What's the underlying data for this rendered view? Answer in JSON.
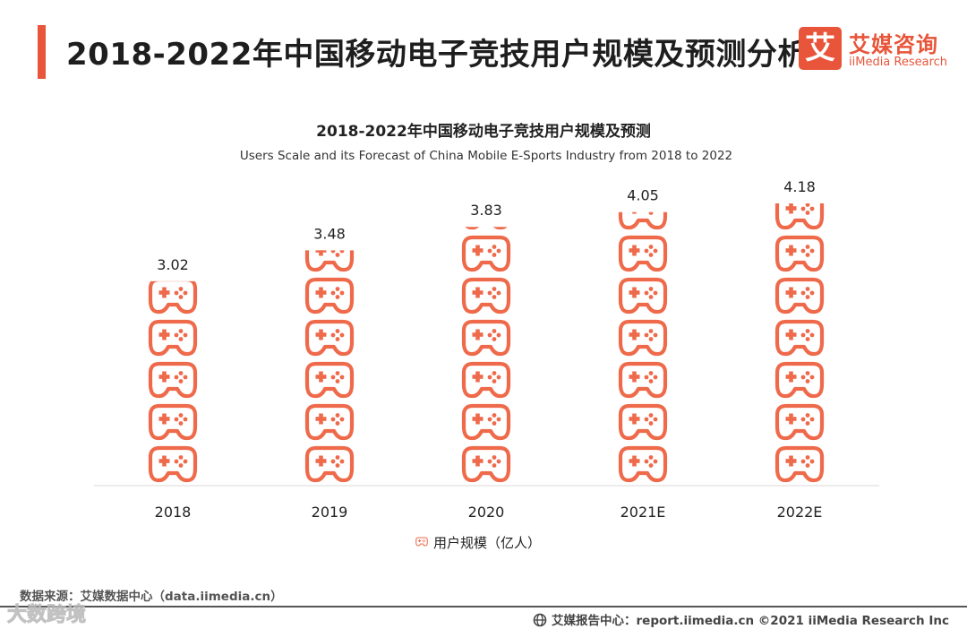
{
  "header": {
    "title": "2018-2022年中国移动电子竞技用户规模及预测分析",
    "logo_char": "艾",
    "logo_cn": "艾媒咨询",
    "logo_en": "iiMedia Research"
  },
  "chart_data": {
    "type": "bar",
    "title": "2018-2022年中国移动电子竞技用户规模及预测",
    "subtitle": "Users Scale and its Forecast of China  Mobile E-Sports Industry from 2018 to 2022",
    "categories": [
      "2018",
      "2019",
      "2020",
      "2021E",
      "2022E"
    ],
    "series": [
      {
        "name": "用户规模（亿人）",
        "values": [
          3.02,
          3.48,
          3.83,
          4.05,
          4.18
        ]
      }
    ],
    "value_labels": [
      "3.02",
      "3.48",
      "3.83",
      "4.05",
      "4.18"
    ],
    "ylim": [
      0,
      4.18
    ],
    "unit": "亿人",
    "legend_position": "bottom",
    "grid": false,
    "color": "#ee6a4b"
  },
  "footer": {
    "source": "数据来源：艾媒数据中心（data.iimedia.cn）",
    "watermark": "大数跨境",
    "right": "艾媒报告中心：report.iimedia.cn ©2021  iiMedia Research  Inc"
  }
}
